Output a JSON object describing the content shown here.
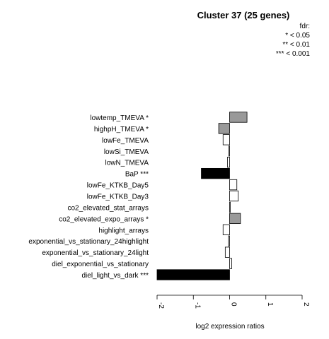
{
  "chart_data": {
    "type": "bar",
    "orientation": "horizontal",
    "title": "Cluster 37 (25 genes)",
    "xlabel": "log2 expression ratios",
    "ylabel": "",
    "xlim": [
      -2,
      2
    ],
    "xticks": [
      "-2",
      "-1",
      "0",
      "1",
      "2"
    ],
    "xtick_values": [
      -2,
      -1,
      0,
      1,
      2
    ],
    "legend": {
      "title": "fdr:",
      "entries": [
        "* < 0.05",
        "** < 0.01",
        "*** < 0.001"
      ],
      "placement": "top-right"
    },
    "categories": [
      "lowtemp_TMEVA *",
      "highpH_TMEVA *",
      "lowFe_TMEVA",
      "lowSi_TMEVA",
      "lowN_TMEVA",
      "BaP ***",
      "lowFe_KTKB_Day5",
      "lowFe_KTKB_Day3",
      "co2_elevated_stat_arrays",
      "co2_elevated_expo_arrays *",
      "highlight_arrays",
      "exponential_vs_stationary_24highlight",
      "exponential_vs_stationary_24light",
      "diel_exponential_vs_stationary",
      "diel_light_vs_dark ***"
    ],
    "values": [
      0.48,
      -0.3,
      -0.18,
      -0.02,
      -0.06,
      -0.78,
      0.2,
      0.24,
      0.02,
      0.3,
      -0.18,
      -0.03,
      -0.12,
      0.06,
      -2.0
    ],
    "bar_colors": [
      "#999999",
      "#999999",
      "#ffffff",
      "#ffffff",
      "#ffffff",
      "#000000",
      "#ffffff",
      "#ffffff",
      "#ffffff",
      "#999999",
      "#ffffff",
      "#ffffff",
      "#ffffff",
      "#ffffff",
      "#000000"
    ]
  }
}
